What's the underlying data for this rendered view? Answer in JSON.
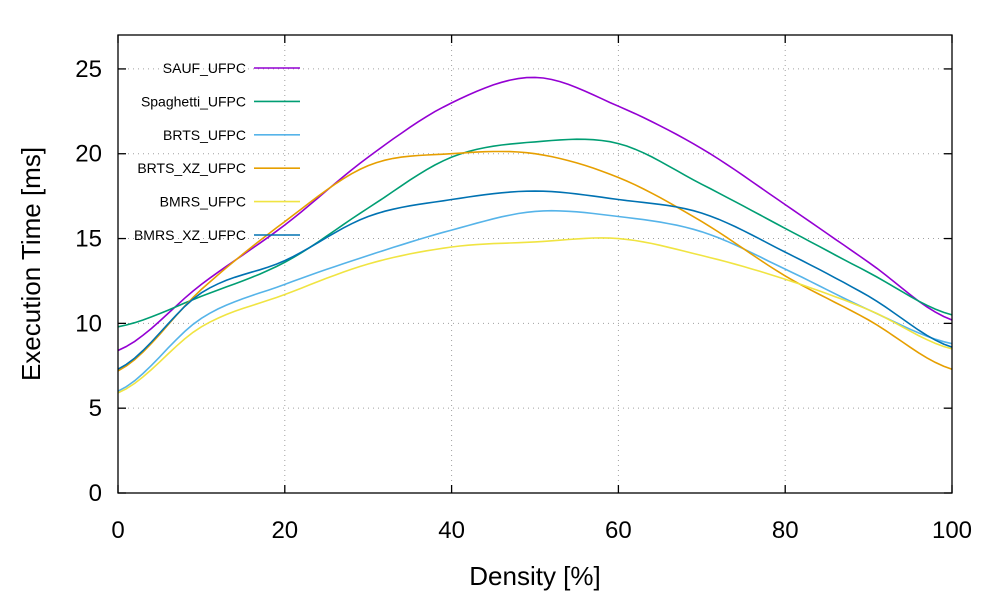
{
  "chart_data": {
    "type": "line",
    "xlabel": "Density [%]",
    "ylabel": "Execution Time [ms]",
    "xlim": [
      0,
      100
    ],
    "ylim": [
      0,
      27
    ],
    "xticks": [
      0,
      20,
      40,
      60,
      80,
      100
    ],
    "yticks": [
      0,
      5,
      10,
      15,
      20,
      25
    ],
    "grid": true,
    "legend_position": "top-left",
    "x": [
      0,
      10,
      20,
      30,
      40,
      50,
      60,
      70,
      80,
      90,
      100
    ],
    "series": [
      {
        "name": "SAUF_UFPC",
        "color": "#9400d3",
        "values": [
          8.4,
          12.3,
          15.8,
          19.8,
          23.0,
          24.5,
          22.8,
          20.3,
          17.0,
          13.6,
          10.2
        ]
      },
      {
        "name": "Spaghetti_UFPC",
        "color": "#009e73",
        "values": [
          9.8,
          11.6,
          13.6,
          16.8,
          19.8,
          20.7,
          20.6,
          18.2,
          15.6,
          13.0,
          10.5
        ]
      },
      {
        "name": "BRTS_UFPC",
        "color": "#56b4e9",
        "values": [
          6.0,
          10.3,
          12.3,
          14.0,
          15.5,
          16.6,
          16.3,
          15.4,
          13.2,
          10.8,
          8.8
        ]
      },
      {
        "name": "BRTS_XZ_UFPC",
        "color": "#e69f00",
        "values": [
          7.2,
          12.0,
          16.0,
          19.3,
          20.0,
          20.0,
          18.6,
          16.0,
          12.8,
          10.2,
          7.3
        ]
      },
      {
        "name": "BMRS_UFPC",
        "color": "#f0e442",
        "values": [
          5.9,
          9.8,
          11.7,
          13.5,
          14.5,
          14.8,
          15.0,
          14.0,
          12.6,
          10.8,
          8.5
        ]
      },
      {
        "name": "BMRS_XZ_UFPC",
        "color": "#0072b2",
        "values": [
          7.3,
          11.8,
          13.7,
          16.3,
          17.3,
          17.8,
          17.3,
          16.5,
          14.2,
          11.6,
          8.6
        ]
      }
    ]
  }
}
